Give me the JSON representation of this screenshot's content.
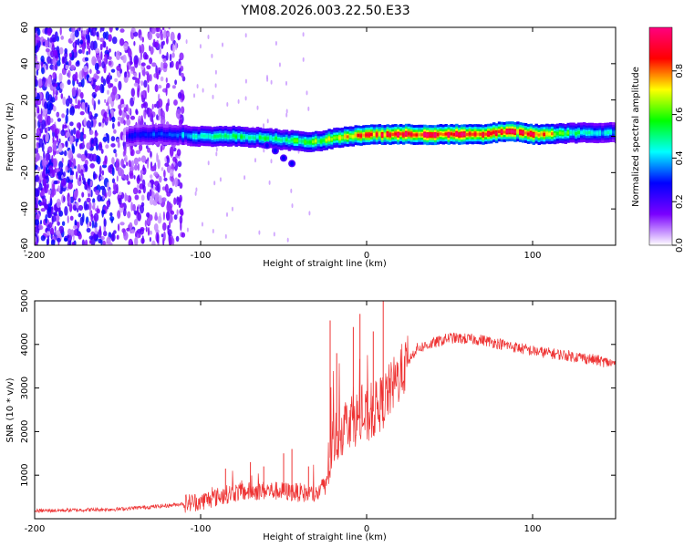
{
  "figure": {
    "title": "YM08.2026.003.22.50.E33"
  },
  "chart_data": [
    {
      "type": "heatmap",
      "name": "spectrogram",
      "xlabel": "Height of straight line (km)",
      "ylabel": "Frequency (Hz)",
      "xlim": [
        -200,
        150
      ],
      "ylim": [
        -60,
        60
      ],
      "xticks": [
        -200,
        -100,
        0,
        100
      ],
      "yticks": [
        -60,
        -40,
        -20,
        0,
        20,
        40,
        60
      ],
      "colorbar": {
        "label": "Normalized spectral amplitude",
        "range": [
          0,
          1
        ],
        "ticks": [
          0.0,
          0.2,
          0.4,
          0.6,
          0.8
        ],
        "tick_labels": [
          "0.0",
          "0.2",
          "0.4",
          "0.6",
          "0.8"
        ],
        "colormap": [
          "#ffffff",
          "#7a00ff",
          "#0000ff",
          "#00ffff",
          "#00ff00",
          "#ffff00",
          "#ff0000",
          "#ff0080"
        ]
      },
      "ridge": [
        {
          "x": -145,
          "y": 0,
          "amp": 0.25
        },
        {
          "x": -135,
          "y": 1,
          "amp": 0.3
        },
        {
          "x": -120,
          "y": 1,
          "amp": 0.35
        },
        {
          "x": -100,
          "y": 0,
          "amp": 0.45
        },
        {
          "x": -80,
          "y": 0,
          "amp": 0.5
        },
        {
          "x": -60,
          "y": -1,
          "amp": 0.5
        },
        {
          "x": -40,
          "y": -3,
          "amp": 0.55
        },
        {
          "x": -30,
          "y": -3,
          "amp": 0.6
        },
        {
          "x": -20,
          "y": -1,
          "amp": 0.7
        },
        {
          "x": -10,
          "y": 0,
          "amp": 0.75
        },
        {
          "x": 0,
          "y": 1,
          "amp": 0.8
        },
        {
          "x": 20,
          "y": 1,
          "amp": 0.9
        },
        {
          "x": 50,
          "y": 1,
          "amp": 0.92
        },
        {
          "x": 70,
          "y": 1,
          "amp": 0.9
        },
        {
          "x": 85,
          "y": 3,
          "amp": 0.88
        },
        {
          "x": 100,
          "y": 1,
          "amp": 0.85
        },
        {
          "x": 130,
          "y": 2,
          "amp": 0.45
        },
        {
          "x": 150,
          "y": 2,
          "amp": 0.4
        }
      ],
      "branch": [
        {
          "x": -60,
          "y": -5
        },
        {
          "x": -55,
          "y": -8
        },
        {
          "x": -50,
          "y": -12
        },
        {
          "x": -45,
          "y": -15
        }
      ],
      "noise_region": {
        "x_range": [
          -200,
          -110
        ],
        "y_range": [
          -60,
          60
        ],
        "amp_range": [
          0.05,
          0.3
        ]
      }
    },
    {
      "type": "line",
      "name": "snr",
      "xlabel": "Height of straight line (km)",
      "ylabel": "SNR (10 * v/v)",
      "xlim": [
        -200,
        150
      ],
      "ylim": [
        0,
        5000
      ],
      "xticks": [
        -200,
        -100,
        0,
        100
      ],
      "yticks": [
        1000,
        2000,
        3000,
        4000,
        5000
      ],
      "color": "#ee3333",
      "envelope": [
        {
          "x": -200,
          "y": 180
        },
        {
          "x": -150,
          "y": 220
        },
        {
          "x": -120,
          "y": 300
        },
        {
          "x": -100,
          "y": 400
        },
        {
          "x": -80,
          "y": 600
        },
        {
          "x": -60,
          "y": 650
        },
        {
          "x": -40,
          "y": 600
        },
        {
          "x": -30,
          "y": 550
        },
        {
          "x": -25,
          "y": 800
        },
        {
          "x": -20,
          "y": 1800
        },
        {
          "x": -10,
          "y": 2300
        },
        {
          "x": 0,
          "y": 2300
        },
        {
          "x": 10,
          "y": 2700
        },
        {
          "x": 20,
          "y": 3300
        },
        {
          "x": 30,
          "y": 3900
        },
        {
          "x": 50,
          "y": 4150
        },
        {
          "x": 70,
          "y": 4100
        },
        {
          "x": 100,
          "y": 3850
        },
        {
          "x": 130,
          "y": 3700
        },
        {
          "x": 150,
          "y": 3550
        }
      ],
      "spikes": [
        {
          "x": -85,
          "y": 1150
        },
        {
          "x": -70,
          "y": 1300
        },
        {
          "x": -62,
          "y": 1200
        },
        {
          "x": -50,
          "y": 1500
        },
        {
          "x": -45,
          "y": 1600
        },
        {
          "x": -35,
          "y": 1200
        },
        {
          "x": -22,
          "y": 4550
        },
        {
          "x": -18,
          "y": 3800
        },
        {
          "x": -8,
          "y": 4400
        },
        {
          "x": -4,
          "y": 4700
        },
        {
          "x": 4,
          "y": 4300
        },
        {
          "x": 10,
          "y": 5000
        }
      ]
    }
  ]
}
